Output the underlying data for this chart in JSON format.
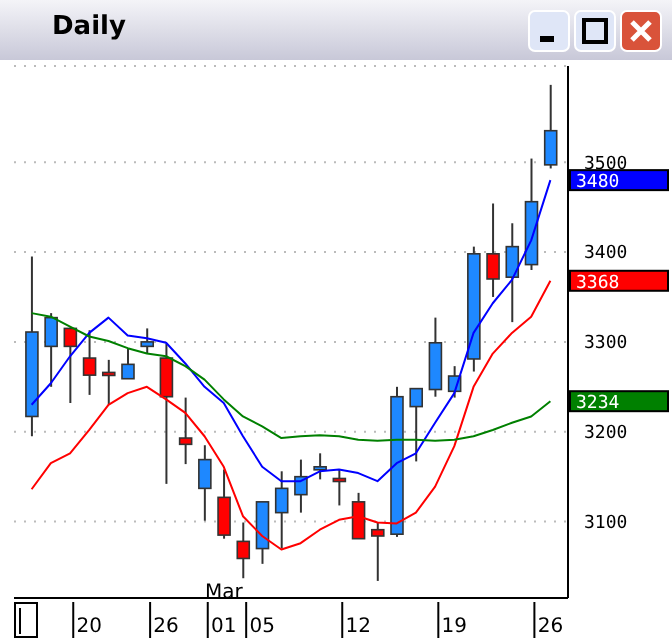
{
  "chart_data": {
    "type": "candlestick",
    "title": "Daily",
    "categories": [
      null,
      null,
      null,
      "20",
      null,
      null,
      null,
      "26",
      null,
      null,
      "01",
      null,
      "05",
      null,
      null,
      null,
      null,
      "12",
      null,
      null,
      null,
      null,
      "19",
      null,
      null,
      null,
      null,
      "26"
    ],
    "ohlc": [
      [
        3217,
        3395,
        3195,
        3311
      ],
      [
        3295,
        3332,
        3250,
        3327
      ],
      [
        3315,
        3316,
        3232,
        3295
      ],
      [
        3282,
        3313,
        3241,
        3263
      ],
      [
        3266,
        3280,
        3230,
        3264
      ],
      [
        3259,
        3293,
        3259,
        3275
      ],
      [
        3295,
        3315,
        3287,
        3300
      ],
      [
        3282,
        3298,
        3142,
        3239
      ],
      [
        3193,
        3238,
        3164,
        3186
      ],
      [
        3137,
        3185,
        3101,
        3169
      ],
      [
        3127,
        3158,
        3081,
        3085
      ],
      [
        3078,
        3099,
        3037,
        3059
      ],
      [
        3070,
        3122,
        3053,
        3122
      ],
      [
        3110,
        3156,
        3070,
        3137
      ],
      [
        3130,
        3169,
        3110,
        3150
      ],
      [
        3159,
        3176,
        3147,
        3161
      ],
      [
        3148,
        3158,
        3118,
        3145
      ],
      [
        3122,
        3132,
        3081,
        3081
      ],
      [
        3091,
        3099,
        3034,
        3084
      ],
      [
        3086,
        3250,
        3083,
        3239
      ],
      [
        3228,
        3248,
        3167,
        3248
      ],
      [
        3247,
        3327,
        3239,
        3299
      ],
      [
        3245,
        3273,
        3238,
        3262
      ],
      [
        3281,
        3406,
        3267,
        3398
      ],
      [
        3398,
        3454,
        3350,
        3370
      ],
      [
        3372,
        3432,
        3322,
        3406
      ],
      [
        3386,
        3504,
        3380,
        3456
      ],
      [
        3497,
        3586,
        3493,
        3535
      ]
    ],
    "colors": [
      "#1e88ff",
      "#1e88ff",
      "#ff0000",
      "#ff0000",
      "#ff0000",
      "#1e88ff",
      "#1e88ff",
      "#ff0000",
      "#ff0000",
      "#1e88ff",
      "#ff0000",
      "#ff0000",
      "#1e88ff",
      "#1e88ff",
      "#1e88ff",
      "#1e88ff",
      "#ff0000",
      "#ff0000",
      "#ff0000",
      "#1e88ff",
      "#1e88ff",
      "#1e88ff",
      "#1e88ff",
      "#1e88ff",
      "#ff0000",
      "#1e88ff",
      "#1e88ff",
      "#1e88ff"
    ],
    "series": [
      {
        "type": "line",
        "color": "#0000ff",
        "values": [
          3230,
          3254,
          3284,
          3310,
          3327,
          3307,
          3304,
          3299,
          3276,
          3250,
          3232,
          3195,
          3161,
          3145,
          3145,
          3156,
          3158,
          3154,
          3145,
          3165,
          3176,
          3210,
          3243,
          3310,
          3343,
          3369,
          3413,
          3480
        ],
        "value_labels": [
          null,
          null,
          null,
          null,
          null,
          null,
          null,
          null,
          null,
          null,
          null,
          null,
          null,
          null,
          null,
          null,
          null,
          null,
          null,
          null,
          null,
          null,
          null,
          null,
          null,
          null,
          null,
          "3480"
        ]
      },
      {
        "type": "line",
        "color": "#ff0000",
        "values": [
          3136,
          3165,
          3176,
          3202,
          3230,
          3243,
          3250,
          3236,
          3221,
          3195,
          3161,
          3106,
          3084,
          3069,
          3076,
          3091,
          3102,
          3106,
          3099,
          3098,
          3110,
          3139,
          3184,
          3250,
          3287,
          3310,
          3328,
          3368
        ],
        "value_labels": [
          null,
          null,
          null,
          null,
          null,
          null,
          null,
          null,
          null,
          null,
          null,
          null,
          null,
          null,
          null,
          null,
          null,
          null,
          null,
          null,
          null,
          null,
          null,
          null,
          null,
          null,
          null,
          "3368"
        ]
      },
      {
        "type": "line",
        "color": "#008000",
        "values": [
          3332,
          3328,
          3317,
          3306,
          3301,
          3293,
          3287,
          3284,
          3273,
          3258,
          3236,
          3217,
          3206,
          3193,
          3195,
          3196,
          3195,
          3191,
          3190,
          3191,
          3191,
          3190,
          3191,
          3195,
          3202,
          3210,
          3217,
          3234
        ],
        "value_labels": [
          null,
          null,
          null,
          null,
          null,
          null,
          null,
          null,
          null,
          null,
          null,
          null,
          null,
          null,
          null,
          null,
          null,
          null,
          null,
          null,
          null,
          null,
          null,
          null,
          null,
          null,
          null,
          "3234"
        ]
      }
    ],
    "ylim": [
      3015,
      3607
    ],
    "yticks": [
      3100,
      3200,
      3300,
      3400,
      3500
    ],
    "grid": "y",
    "marker": "none",
    "line_style": "solid",
    "annotations": [
      "Mar"
    ]
  }
}
